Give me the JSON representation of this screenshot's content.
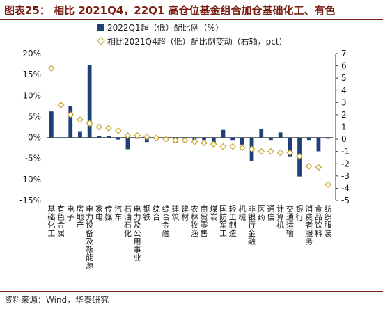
{
  "title": "图表25：  相比 2021Q4，22Q1 高仓位基金组合加仓基础化工、有色",
  "source": "资料来源：Wind，华泰研究",
  "colors": {
    "bar": "#1f3f7a",
    "marker": "#c9a227",
    "title": "#7a1e12",
    "axis": "#333333"
  },
  "chart_data": {
    "type": "bar",
    "categories": [
      "基础化工",
      "有色金属",
      "电子",
      "房地产",
      "电力设备及新能源",
      "家电",
      "传媒",
      "汽车",
      "石油石化",
      "电力及公用事业",
      "钢铁",
      "综合",
      "综合金融",
      "建筑",
      "建材",
      "农林牧渔",
      "商贸零售",
      "煤炭",
      "国防军工",
      "轻工制造",
      "机械",
      "非银行金融",
      "医药",
      "通信",
      "计算机",
      "交通运输",
      "银行",
      "消费者服务",
      "食品饮料",
      "纺织服装"
    ],
    "series": [
      {
        "name": "2022Q1超（低）配比例（%）",
        "type": "bar",
        "axis": "left",
        "values": [
          6.2,
          0.0,
          7.4,
          1.5,
          17.2,
          0.4,
          0.3,
          -0.5,
          -2.8,
          -0.3,
          -1.1,
          0.0,
          -0.1,
          -1.2,
          -0.5,
          -0.8,
          -0.6,
          -1.3,
          1.8,
          -0.6,
          -1.7,
          -5.6,
          2.0,
          -0.6,
          1.2,
          -4.5,
          -9.3,
          -0.6,
          -3.3,
          -0.3
        ]
      },
      {
        "name": "相比2021Q4超（低）配比例变动（右轴，pct）",
        "type": "scatter",
        "axis": "right",
        "values": [
          5.8,
          2.8,
          2.0,
          1.6,
          1.3,
          1.0,
          0.9,
          0.7,
          0.3,
          0.3,
          0.2,
          0.1,
          0.0,
          -0.1,
          -0.1,
          -0.2,
          -0.3,
          -0.4,
          -0.6,
          -0.6,
          -0.7,
          -0.8,
          -1.0,
          -1.0,
          -1.1,
          -1.1,
          -1.4,
          -2.2,
          -2.3,
          -3.7
        ]
      }
    ],
    "ylim_left": [
      -15,
      20
    ],
    "yticks_left": [
      "20%",
      "15%",
      "10%",
      "5%",
      "0%",
      "-5%",
      "-10%",
      "-15%"
    ],
    "ylim_right": [
      -5,
      7
    ],
    "yticks_right": [
      "7",
      "6",
      "5",
      "4",
      "3",
      "2",
      "1",
      "0",
      "-1",
      "-2",
      "-3",
      "-4",
      "-5"
    ],
    "legend_position": "top"
  }
}
